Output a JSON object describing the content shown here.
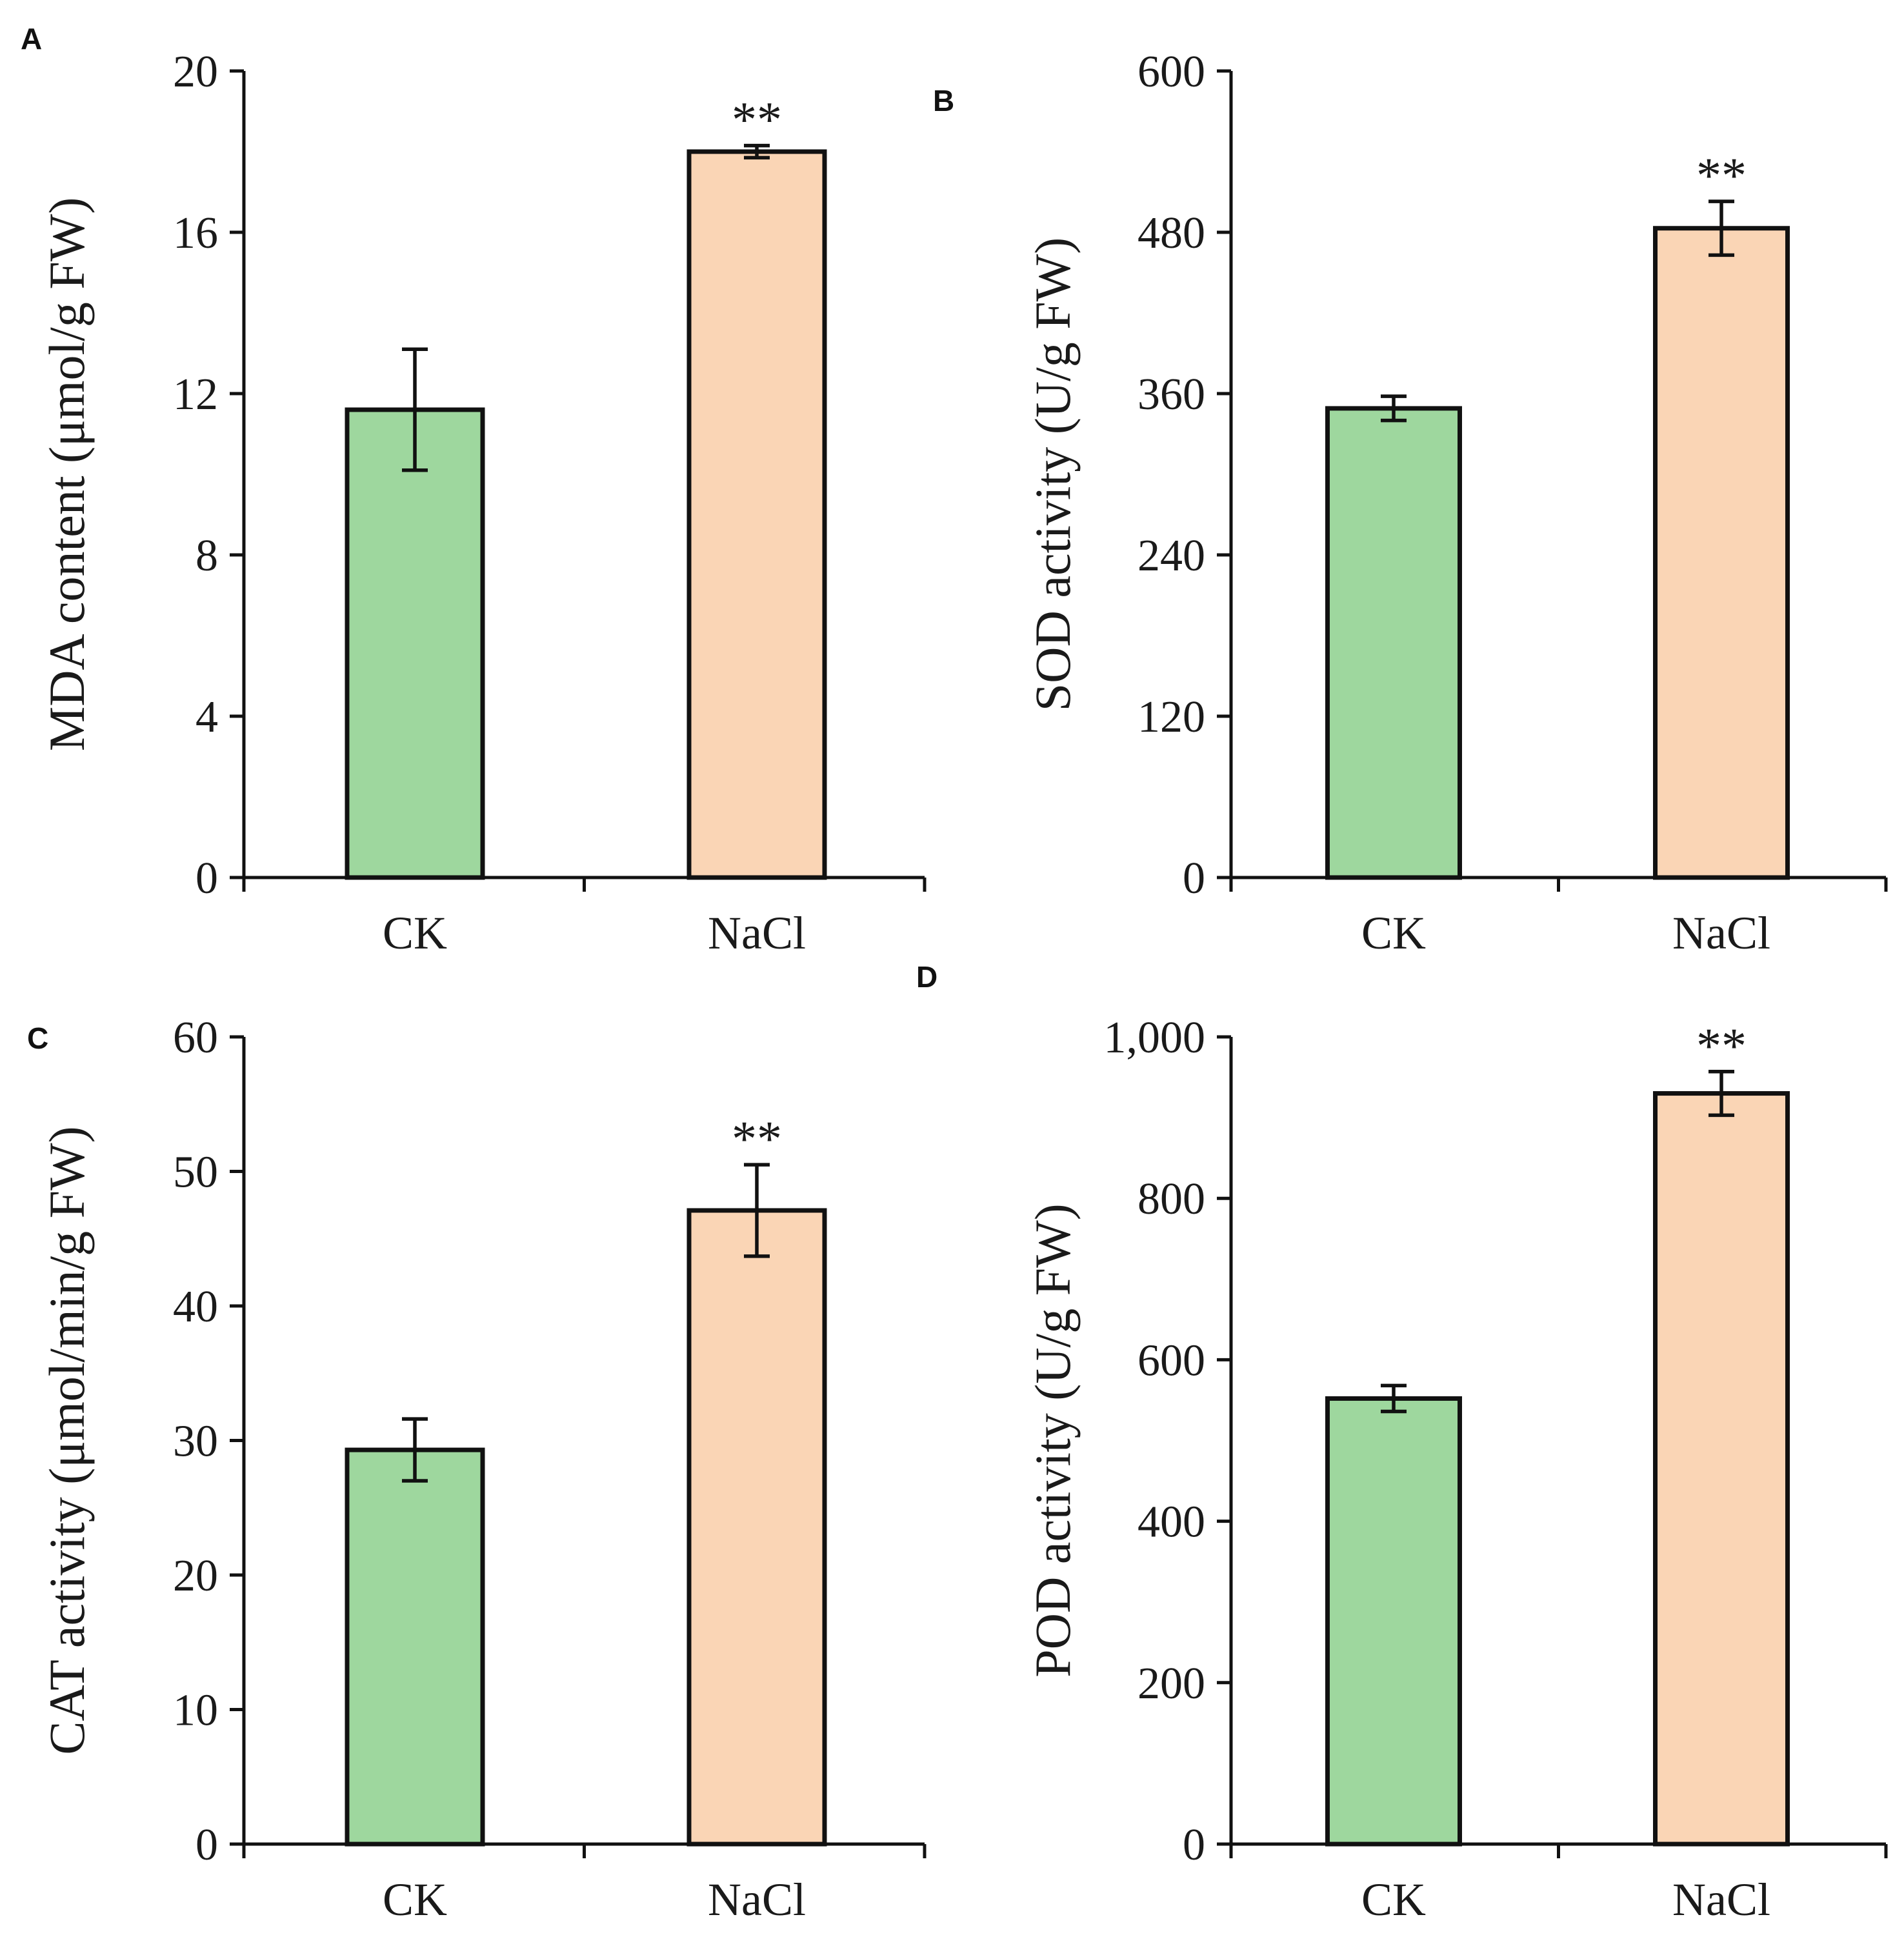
{
  "colors": {
    "ck": "#9ed79e",
    "nacl": "#fad5b5",
    "stroke": "#111111"
  },
  "chart_data": [
    {
      "panel": "A",
      "type": "bar",
      "categories": [
        "CK",
        "NaCl"
      ],
      "values": [
        11.6,
        18.0
      ],
      "errors": [
        1.5,
        0.15
      ],
      "significance": [
        "",
        "**"
      ],
      "ylabel": "MDA content (μmol/g FW)",
      "ylim": [
        0,
        20
      ],
      "yticks": [
        0,
        4,
        8,
        12,
        16,
        20
      ],
      "ytick_labels": [
        "0",
        "4",
        "8",
        "12",
        "16",
        "20"
      ]
    },
    {
      "panel": "B",
      "type": "bar",
      "categories": [
        "CK",
        "NaCl"
      ],
      "values": [
        349,
        483
      ],
      "errors": [
        9,
        20
      ],
      "significance": [
        "",
        "**"
      ],
      "ylabel": "SOD activity (U/g FW)",
      "ylim": [
        0,
        600
      ],
      "yticks": [
        0,
        120,
        240,
        360,
        480,
        600
      ],
      "ytick_labels": [
        "0",
        "120",
        "240",
        "360",
        "480",
        "600"
      ]
    },
    {
      "panel": "C",
      "type": "bar",
      "categories": [
        "CK",
        "NaCl"
      ],
      "values": [
        29.3,
        47.1
      ],
      "errors": [
        2.3,
        3.4
      ],
      "significance": [
        "",
        "**"
      ],
      "ylabel": "CAT activity (μmol/min/g FW)",
      "ylim": [
        0,
        60
      ],
      "yticks": [
        0,
        10,
        20,
        30,
        40,
        50,
        60
      ],
      "ytick_labels": [
        "0",
        "10",
        "20",
        "30",
        "40",
        "50",
        "60"
      ]
    },
    {
      "panel": "D",
      "type": "bar",
      "categories": [
        "CK",
        "NaCl"
      ],
      "values": [
        552,
        930
      ],
      "errors": [
        16,
        27
      ],
      "significance": [
        "",
        "**"
      ],
      "ylabel": "POD activity (U/g FW)",
      "ylim": [
        0,
        1000
      ],
      "yticks": [
        0,
        200,
        400,
        600,
        800,
        1000
      ],
      "ytick_labels": [
        "0",
        "200",
        "400",
        "600",
        "800",
        "1,000"
      ]
    }
  ]
}
